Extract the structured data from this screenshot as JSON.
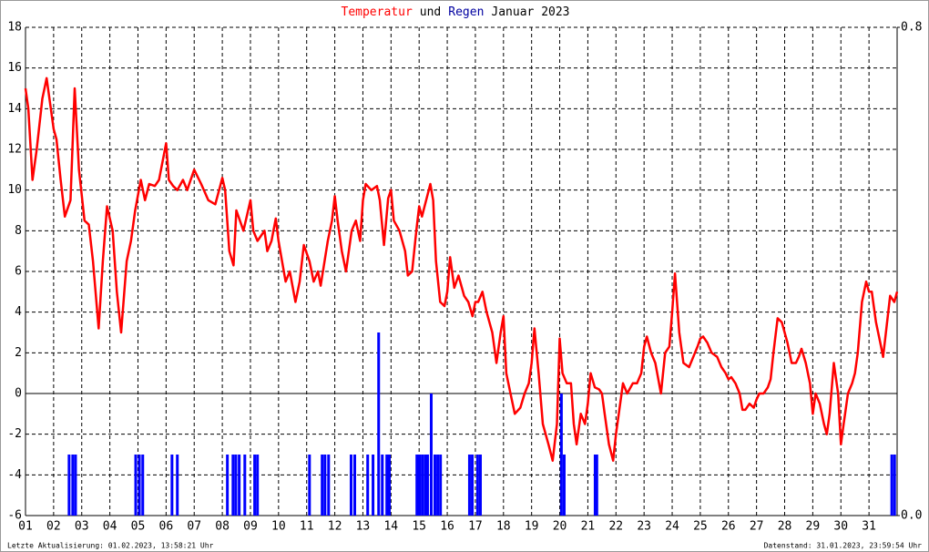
{
  "chart_data": {
    "type": "combo",
    "title": [
      "Temperatur",
      "und",
      "Regen",
      "Januar 2023"
    ],
    "title_colors": [
      "#ff0000",
      "#000000",
      "#0000a0",
      "#000000"
    ],
    "xlim": [
      1,
      32
    ],
    "xticks": [
      {
        "value": 1,
        "label": "01"
      },
      {
        "value": 2,
        "label": "02"
      },
      {
        "value": 3,
        "label": "03"
      },
      {
        "value": 4,
        "label": "04"
      },
      {
        "value": 5,
        "label": "05"
      },
      {
        "value": 6,
        "label": "06"
      },
      {
        "value": 7,
        "label": "07"
      },
      {
        "value": 8,
        "label": "08"
      },
      {
        "value": 9,
        "label": "09"
      },
      {
        "value": 10,
        "label": "10"
      },
      {
        "value": 11,
        "label": "11"
      },
      {
        "value": 12,
        "label": "12"
      },
      {
        "value": 13,
        "label": "13"
      },
      {
        "value": 14,
        "label": "14"
      },
      {
        "value": 15,
        "label": "15"
      },
      {
        "value": 16,
        "label": "16"
      },
      {
        "value": 17,
        "label": "17"
      },
      {
        "value": 18,
        "label": "18"
      },
      {
        "value": 19,
        "label": "19"
      },
      {
        "value": 20,
        "label": "20"
      },
      {
        "value": 21,
        "label": "21"
      },
      {
        "value": 22,
        "label": "22"
      },
      {
        "value": 23,
        "label": "23"
      },
      {
        "value": 24,
        "label": "24"
      },
      {
        "value": 25,
        "label": "25"
      },
      {
        "value": 26,
        "label": "26"
      },
      {
        "value": 27,
        "label": "27"
      },
      {
        "value": 28,
        "label": "28"
      },
      {
        "value": 29,
        "label": "29"
      },
      {
        "value": 30,
        "label": "30"
      },
      {
        "value": 31,
        "label": "31"
      }
    ],
    "ylim": [
      -6,
      18
    ],
    "yticks": [
      -6,
      -4,
      -2,
      0,
      2,
      4,
      6,
      8,
      10,
      12,
      14,
      16,
      18
    ],
    "y2lim": [
      0,
      0.8
    ],
    "y2ticks": [
      {
        "value": 0,
        "label": "0.0"
      },
      {
        "value": 0.8,
        "label": "0.8"
      }
    ],
    "grid": true,
    "series": [
      {
        "type": "line",
        "color": "#ff0000",
        "x": [
          1.0,
          1.1,
          1.25,
          1.4,
          1.6,
          1.75,
          2.0,
          2.1,
          2.25,
          2.4,
          2.6,
          2.75,
          2.9,
          3.1,
          3.25,
          3.4,
          3.6,
          3.75,
          3.9,
          4.1,
          4.25,
          4.4,
          4.6,
          4.75,
          4.9,
          5.1,
          5.25,
          5.4,
          5.6,
          5.75,
          6.0,
          6.1,
          6.25,
          6.4,
          6.6,
          6.75,
          7.0,
          7.25,
          7.5,
          7.75,
          8.0,
          8.1,
          8.25,
          8.4,
          8.5,
          8.75,
          9.0,
          9.1,
          9.25,
          9.5,
          9.6,
          9.75,
          9.9,
          10.0,
          10.25,
          10.4,
          10.6,
          10.75,
          10.9,
          11.1,
          11.25,
          11.4,
          11.5,
          11.75,
          11.9,
          12.0,
          12.1,
          12.25,
          12.4,
          12.6,
          12.75,
          12.9,
          13.0,
          13.1,
          13.3,
          13.5,
          13.6,
          13.75,
          13.9,
          14.0,
          14.1,
          14.3,
          14.5,
          14.6,
          14.75,
          14.9,
          15.0,
          15.1,
          15.25,
          15.4,
          15.5,
          15.6,
          15.75,
          15.9,
          16.0,
          16.1,
          16.25,
          16.4,
          16.6,
          16.75,
          16.9,
          17.0,
          17.1,
          17.25,
          17.4,
          17.6,
          17.75,
          17.9,
          18.0,
          18.1,
          18.25,
          18.4,
          18.6,
          18.75,
          18.9,
          19.0,
          19.1,
          19.25,
          19.4,
          19.6,
          19.75,
          19.9,
          20.0,
          20.1,
          20.25,
          20.4,
          20.5,
          20.6,
          20.75,
          20.9,
          21.0,
          21.1,
          21.25,
          21.4,
          21.5,
          21.6,
          21.75,
          21.9,
          22.0,
          22.1,
          22.25,
          22.4,
          22.6,
          22.75,
          22.9,
          23.0,
          23.1,
          23.25,
          23.4,
          23.6,
          23.75,
          23.9,
          24.0,
          24.1,
          24.25,
          24.4,
          24.6,
          24.75,
          24.9,
          25.0,
          25.1,
          25.25,
          25.4,
          25.6,
          25.75,
          25.9,
          26.0,
          26.1,
          26.25,
          26.4,
          26.5,
          26.6,
          26.75,
          26.9,
          27.0,
          27.1,
          27.25,
          27.4,
          27.5,
          27.6,
          27.75,
          27.9,
          28.0,
          28.1,
          28.25,
          28.4,
          28.5,
          28.6,
          28.75,
          28.9,
          29.0,
          29.1,
          29.25,
          29.4,
          29.5,
          29.6,
          29.75,
          29.9,
          30.0,
          30.1,
          30.25,
          30.4,
          30.5,
          30.6,
          30.75,
          30.9,
          31.0,
          31.1,
          31.25,
          31.4,
          31.5,
          31.6,
          31.75,
          31.9,
          32.0
        ],
        "values": [
          15,
          14,
          10.5,
          12,
          14.5,
          15.5,
          13,
          12.5,
          10.5,
          8.7,
          9.5,
          15,
          11,
          8.5,
          8.3,
          6.5,
          3.2,
          6.5,
          9.2,
          8,
          5,
          3,
          6.5,
          7.5,
          9,
          10.5,
          9.5,
          10.3,
          10.2,
          10.5,
          12.3,
          10.5,
          10.2,
          10,
          10.5,
          10,
          11,
          10.3,
          9.5,
          9.3,
          10.6,
          10,
          7,
          6.3,
          9,
          8,
          9.5,
          8,
          7.5,
          8,
          7,
          7.5,
          8.6,
          7.5,
          5.5,
          6,
          4.5,
          5.5,
          7.3,
          6.5,
          5.5,
          6,
          5.3,
          7.5,
          8.5,
          9.7,
          8.5,
          7,
          6,
          8,
          8.5,
          7.5,
          9.5,
          10.3,
          10,
          10.2,
          9.5,
          7.3,
          9.6,
          10,
          8.5,
          8,
          7,
          5.8,
          6,
          8,
          9.2,
          8.7,
          9.5,
          10.3,
          9.5,
          6.5,
          4.5,
          4.3,
          5,
          6.7,
          5.2,
          5.8,
          4.8,
          4.5,
          3.8,
          4.5,
          4.5,
          5,
          4,
          3,
          1.5,
          3,
          3.8,
          1,
          0,
          -1,
          -0.7,
          0,
          0.5,
          1.5,
          3.2,
          1,
          -1.5,
          -2.5,
          -3.3,
          -1.5,
          2.7,
          1,
          0.5,
          0.5,
          -1.5,
          -2.5,
          -1,
          -1.5,
          -0.5,
          1,
          0.3,
          0.2,
          0,
          -1,
          -2.5,
          -3.3,
          -2,
          -1,
          0.5,
          0,
          0.5,
          0.5,
          1,
          2.3,
          2.8,
          2,
          1.5,
          0,
          2,
          2.3,
          4,
          5.9,
          3,
          1.5,
          1.3,
          1.8,
          2.3,
          2.7,
          2.8,
          2.5,
          2,
          1.8,
          1.3,
          1,
          0.7,
          0.8,
          0.5,
          0,
          -0.8,
          -0.8,
          -0.5,
          -0.7,
          -0.3,
          0,
          0,
          0.3,
          0.7,
          2,
          3.7,
          3.5,
          3,
          2.5,
          1.5,
          1.5,
          1.8,
          2.2,
          1.5,
          0.5,
          -1,
          0,
          -0.5,
          -1.5,
          -2,
          -1,
          1.5,
          0,
          -2.5,
          -1.5,
          0,
          0.5,
          1,
          2,
          4.5,
          5.5,
          5,
          5,
          3.5,
          2.5,
          1.8,
          3,
          4.8,
          4.5,
          5
        ]
      },
      {
        "type": "bar",
        "color": "#0000ff",
        "axis": "y2",
        "x": [
          2.55,
          2.68,
          2.78,
          4.92,
          5.05,
          5.17,
          6.21,
          6.4,
          8.18,
          8.38,
          8.48,
          8.6,
          8.8,
          9.15,
          9.25,
          11.1,
          11.55,
          11.65,
          11.78,
          12.58,
          12.71,
          13.17,
          13.36,
          13.56,
          13.69,
          13.85,
          13.94,
          14.92,
          15.01,
          15.11,
          15.21,
          15.3,
          15.43,
          15.56,
          15.66,
          15.76,
          16.79,
          16.89,
          17.08,
          17.18,
          20.06,
          20.16,
          21.26,
          21.32,
          31.81,
          31.91
        ],
        "values": [
          0.1,
          0.1,
          0.1,
          0.1,
          0.1,
          0.1,
          0.1,
          0.1,
          0.1,
          0.1,
          0.1,
          0.1,
          0.1,
          0.1,
          0.1,
          0.1,
          0.1,
          0.1,
          0.1,
          0.1,
          0.1,
          0.1,
          0.1,
          0.3,
          0.1,
          0.1,
          0.1,
          0.1,
          0.1,
          0.1,
          0.1,
          0.1,
          0.2,
          0.1,
          0.1,
          0.1,
          0.1,
          0.1,
          0.1,
          0.1,
          0.2,
          0.1,
          0.1,
          0.1,
          0.1,
          0.1
        ]
      }
    ],
    "footer": {
      "left": "Letzte Aktualisierung: 01.02.2023, 13:58:21 Uhr",
      "right": "Datenstand: 31.01.2023, 23:59:54 Uhr"
    }
  }
}
